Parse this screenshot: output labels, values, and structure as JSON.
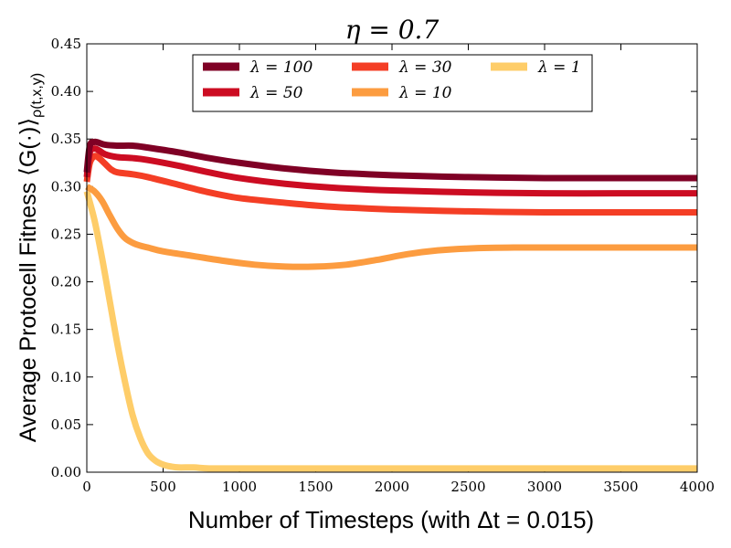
{
  "chart_data": {
    "type": "line",
    "title": "η = 0.7",
    "xlabel": "Number of Timesteps (with Δt = 0.015)",
    "ylabel": "Average Protocell Fitness ⟨G(·)⟩",
    "ylabel_subscript": "ρ(t,x,y)",
    "xlim": [
      0,
      4000
    ],
    "ylim": [
      0.0,
      0.45
    ],
    "xticks": [
      "0",
      "500",
      "1000",
      "1500",
      "2000",
      "2500",
      "3000",
      "3500",
      "4000"
    ],
    "yticks": [
      "0.00",
      "0.05",
      "0.10",
      "0.15",
      "0.20",
      "0.25",
      "0.30",
      "0.35",
      "0.40",
      "0.45"
    ],
    "grid": false,
    "legend_position": "top-center",
    "series": [
      {
        "name": "λ = 100",
        "color": "#7f0025",
        "x": [
          0,
          20,
          50,
          80,
          120,
          200,
          300,
          400,
          600,
          800,
          1000,
          1300,
          1600,
          2000,
          2500,
          3000,
          3500,
          4000
        ],
        "y": [
          0.315,
          0.343,
          0.347,
          0.346,
          0.344,
          0.343,
          0.343,
          0.341,
          0.336,
          0.33,
          0.325,
          0.319,
          0.315,
          0.312,
          0.31,
          0.309,
          0.309,
          0.309
        ]
      },
      {
        "name": "λ = 50",
        "color": "#cc0c22",
        "x": [
          0,
          20,
          50,
          80,
          120,
          200,
          300,
          400,
          600,
          800,
          1000,
          1300,
          1600,
          2000,
          2500,
          3000,
          3500,
          4000
        ],
        "y": [
          0.31,
          0.336,
          0.34,
          0.338,
          0.334,
          0.331,
          0.33,
          0.328,
          0.322,
          0.315,
          0.309,
          0.303,
          0.299,
          0.296,
          0.294,
          0.293,
          0.293,
          0.293
        ]
      },
      {
        "name": "λ = 30",
        "color": "#f43e25",
        "x": [
          0,
          20,
          50,
          80,
          120,
          160,
          200,
          300,
          400,
          600,
          800,
          1000,
          1300,
          1600,
          2000,
          2500,
          3000,
          3500,
          4000
        ],
        "y": [
          0.305,
          0.325,
          0.332,
          0.33,
          0.324,
          0.318,
          0.315,
          0.313,
          0.31,
          0.302,
          0.294,
          0.288,
          0.283,
          0.279,
          0.276,
          0.274,
          0.273,
          0.273,
          0.273
        ]
      },
      {
        "name": "λ = 10",
        "color": "#fc9c40",
        "x": [
          0,
          50,
          100,
          150,
          200,
          250,
          300,
          350,
          400,
          500,
          700,
          900,
          1100,
          1300,
          1500,
          1700,
          1900,
          2100,
          2300,
          2500,
          2800,
          3200,
          3600,
          4000
        ],
        "y": [
          0.3,
          0.295,
          0.285,
          0.27,
          0.256,
          0.246,
          0.241,
          0.238,
          0.236,
          0.232,
          0.227,
          0.222,
          0.218,
          0.216,
          0.216,
          0.218,
          0.223,
          0.229,
          0.233,
          0.235,
          0.236,
          0.236,
          0.236,
          0.236
        ]
      },
      {
        "name": "λ = 1",
        "color": "#fecd69",
        "x": [
          0,
          50,
          100,
          150,
          200,
          250,
          300,
          350,
          400,
          450,
          500,
          550,
          600,
          700,
          800,
          1000,
          1500,
          2000,
          3000,
          4000
        ],
        "y": [
          0.295,
          0.265,
          0.225,
          0.18,
          0.135,
          0.095,
          0.06,
          0.036,
          0.02,
          0.012,
          0.008,
          0.006,
          0.005,
          0.005,
          0.004,
          0.004,
          0.004,
          0.004,
          0.004,
          0.004
        ]
      }
    ]
  }
}
